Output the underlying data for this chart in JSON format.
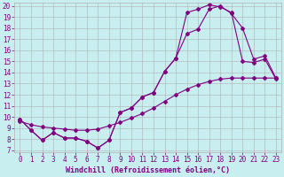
{
  "xlabel": "Windchill (Refroidissement éolien,°C)",
  "bg_color": "#c8eef0",
  "line_color": "#800080",
  "grid_color": "#b0b0b0",
  "xlim": [
    -0.5,
    23.5
  ],
  "ylim": [
    6.8,
    20.3
  ],
  "xticks": [
    0,
    1,
    2,
    3,
    4,
    5,
    6,
    7,
    8,
    9,
    10,
    11,
    12,
    13,
    14,
    15,
    16,
    17,
    18,
    19,
    20,
    21,
    22,
    23
  ],
  "yticks": [
    7,
    8,
    9,
    10,
    11,
    12,
    13,
    14,
    15,
    16,
    17,
    18,
    19,
    20
  ],
  "line1_x": [
    0,
    1,
    2,
    3,
    4,
    5,
    6,
    7,
    8,
    9,
    10,
    11,
    12,
    13,
    14,
    15,
    16,
    17,
    18,
    19,
    20,
    21,
    22,
    23
  ],
  "line1_y": [
    9.8,
    8.8,
    7.9,
    8.6,
    8.1,
    8.1,
    7.8,
    7.2,
    7.9,
    10.4,
    10.8,
    11.8,
    12.2,
    14.1,
    15.3,
    19.4,
    19.7,
    20.1,
    19.9,
    19.4,
    15.0,
    14.9,
    15.2,
    13.4
  ],
  "line2_x": [
    0,
    1,
    2,
    3,
    4,
    5,
    6,
    7,
    8,
    9,
    10,
    11,
    12,
    13,
    14,
    15,
    16,
    17,
    18,
    19,
    20,
    21,
    22,
    23
  ],
  "line2_y": [
    9.8,
    8.8,
    7.9,
    8.6,
    8.1,
    8.1,
    7.8,
    7.2,
    7.9,
    10.4,
    10.8,
    11.8,
    12.2,
    14.1,
    15.3,
    17.5,
    17.9,
    19.7,
    20.0,
    19.3,
    18.0,
    15.2,
    15.5,
    13.5
  ],
  "line3_x": [
    0,
    1,
    2,
    3,
    4,
    5,
    6,
    7,
    8,
    9,
    10,
    11,
    12,
    13,
    14,
    15,
    16,
    17,
    18,
    19,
    20,
    21,
    22,
    23
  ],
  "line3_y": [
    9.6,
    9.3,
    9.1,
    9.0,
    8.9,
    8.8,
    8.8,
    8.9,
    9.2,
    9.5,
    9.9,
    10.3,
    10.8,
    11.4,
    12.0,
    12.5,
    12.9,
    13.2,
    13.4,
    13.5,
    13.5,
    13.5,
    13.5,
    13.5
  ],
  "marker": "D",
  "markersize": 2.0,
  "linewidth": 0.8,
  "xlabel_fontsize": 6,
  "tick_fontsize": 5.5
}
